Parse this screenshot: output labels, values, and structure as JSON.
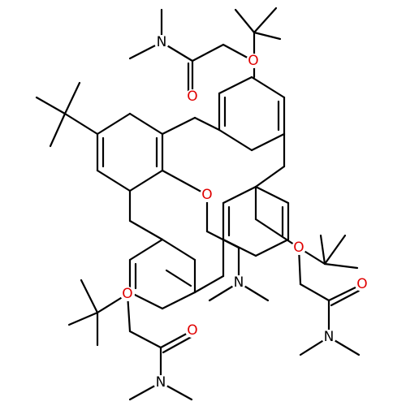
{
  "nodes": [
    {
      "label": "N",
      "element": "nitrogen"
    },
    {
      "label": "O",
      "element": "oxygen"
    },
    {
      "label": "O",
      "element": "oxygen"
    },
    {
      "label": "O",
      "element": "oxygen"
    },
    {
      "label": "N",
      "element": "nitrogen"
    },
    {
      "label": "O",
      "element": "oxygen"
    },
    {
      "label": "O",
      "element": "oxygen"
    },
    {
      "label": "N",
      "element": "nitrogen"
    },
    {
      "label": "O",
      "element": "oxygen"
    },
    {
      "label": "O",
      "element": "oxygen"
    },
    {
      "label": "N",
      "element": "nitrogen"
    }
  ]
}
